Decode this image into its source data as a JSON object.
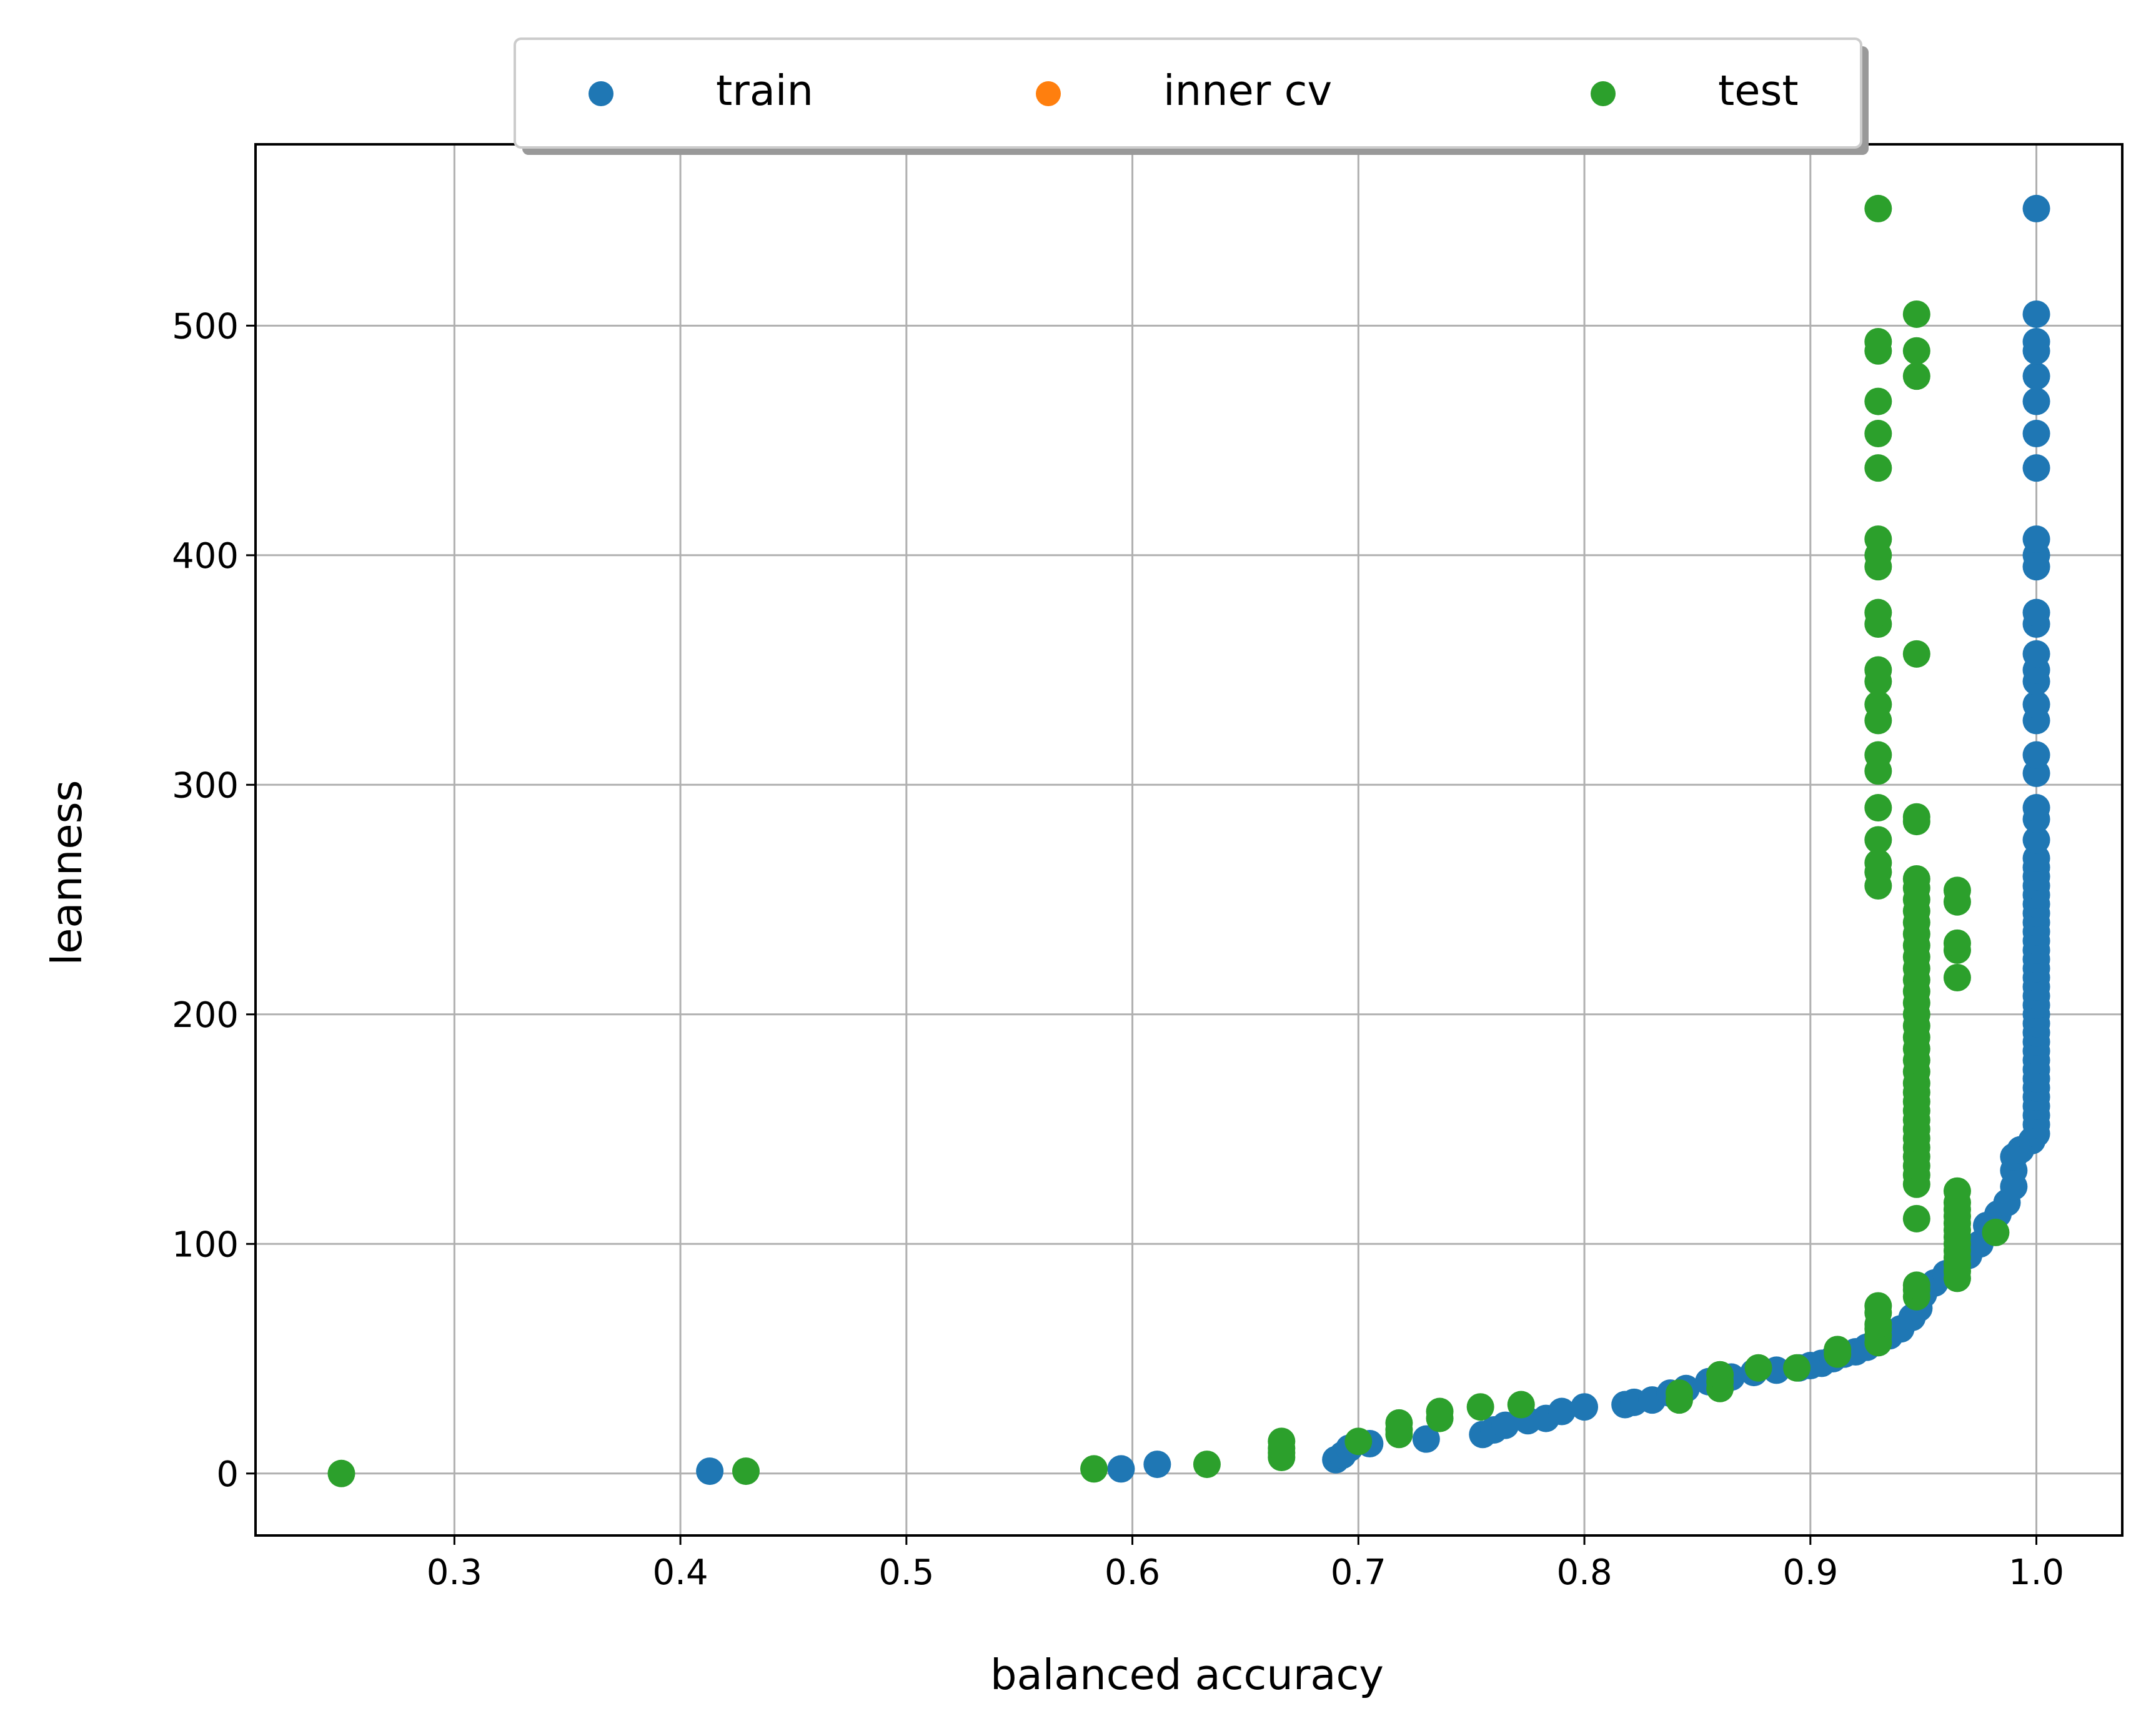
{
  "chart_data": {
    "type": "scatter",
    "xlabel": "balanced accuracy",
    "ylabel": "leanness",
    "xlim": [
      0.212,
      1.038
    ],
    "ylim": [
      -27,
      579
    ],
    "xticks": [
      0.3,
      0.4,
      0.5,
      0.6,
      0.7,
      0.8,
      0.9,
      1.0
    ],
    "xtick_labels": [
      "0.3",
      "0.4",
      "0.5",
      "0.6",
      "0.7",
      "0.8",
      "0.9",
      "1.0"
    ],
    "yticks": [
      0,
      100,
      200,
      300,
      400,
      500
    ],
    "ytick_labels": [
      "0",
      "100",
      "200",
      "300",
      "400",
      "500"
    ],
    "grid": true,
    "legend_position": "top-center",
    "series": [
      {
        "name": "train",
        "color": "#1f77b4",
        "points": [
          [
            0.413,
            1
          ],
          [
            0.595,
            2
          ],
          [
            0.611,
            4
          ],
          [
            0.69,
            6
          ],
          [
            0.693,
            8
          ],
          [
            0.696,
            11
          ],
          [
            0.705,
            13
          ],
          [
            0.73,
            15
          ],
          [
            0.755,
            17
          ],
          [
            0.76,
            19
          ],
          [
            0.765,
            21
          ],
          [
            0.775,
            23
          ],
          [
            0.783,
            24
          ],
          [
            0.79,
            27
          ],
          [
            0.8,
            29
          ],
          [
            0.818,
            30
          ],
          [
            0.822,
            31
          ],
          [
            0.83,
            32
          ],
          [
            0.838,
            35
          ],
          [
            0.845,
            37
          ],
          [
            0.855,
            40
          ],
          [
            0.865,
            42
          ],
          [
            0.875,
            44
          ],
          [
            0.885,
            45
          ],
          [
            0.895,
            46
          ],
          [
            0.9,
            47
          ],
          [
            0.905,
            48
          ],
          [
            0.91,
            50
          ],
          [
            0.915,
            52
          ],
          [
            0.92,
            53
          ],
          [
            0.925,
            55
          ],
          [
            0.93,
            57
          ],
          [
            0.935,
            60
          ],
          [
            0.94,
            63
          ],
          [
            0.945,
            68
          ],
          [
            0.948,
            72
          ],
          [
            0.95,
            78
          ],
          [
            0.955,
            83
          ],
          [
            0.96,
            87
          ],
          [
            0.965,
            90
          ],
          [
            0.97,
            95
          ],
          [
            0.975,
            100
          ],
          [
            0.978,
            108
          ],
          [
            0.983,
            113
          ],
          [
            0.987,
            118
          ],
          [
            0.99,
            125
          ],
          [
            0.99,
            132
          ],
          [
            0.99,
            138
          ],
          [
            0.993,
            141
          ],
          [
            0.998,
            145
          ],
          [
            1.0,
            148
          ],
          [
            1.0,
            152
          ],
          [
            1.0,
            156
          ],
          [
            1.0,
            160
          ],
          [
            1.0,
            164
          ],
          [
            1.0,
            168
          ],
          [
            1.0,
            172
          ],
          [
            1.0,
            176
          ],
          [
            1.0,
            180
          ],
          [
            1.0,
            184
          ],
          [
            1.0,
            188
          ],
          [
            1.0,
            192
          ],
          [
            1.0,
            196
          ],
          [
            1.0,
            200
          ],
          [
            1.0,
            204
          ],
          [
            1.0,
            208
          ],
          [
            1.0,
            212
          ],
          [
            1.0,
            216
          ],
          [
            1.0,
            220
          ],
          [
            1.0,
            224
          ],
          [
            1.0,
            228
          ],
          [
            1.0,
            232
          ],
          [
            1.0,
            236
          ],
          [
            1.0,
            240
          ],
          [
            1.0,
            244
          ],
          [
            1.0,
            248
          ],
          [
            1.0,
            252
          ],
          [
            1.0,
            256
          ],
          [
            1.0,
            260
          ],
          [
            1.0,
            264
          ],
          [
            1.0,
            268
          ],
          [
            1.0,
            276
          ],
          [
            1.0,
            285
          ],
          [
            1.0,
            290
          ],
          [
            1.0,
            305
          ],
          [
            1.0,
            313
          ],
          [
            1.0,
            328
          ],
          [
            1.0,
            335
          ],
          [
            1.0,
            345
          ],
          [
            1.0,
            350
          ],
          [
            1.0,
            357
          ],
          [
            1.0,
            370
          ],
          [
            1.0,
            375
          ],
          [
            1.0,
            395
          ],
          [
            1.0,
            400
          ],
          [
            1.0,
            407
          ],
          [
            1.0,
            438
          ],
          [
            1.0,
            453
          ],
          [
            1.0,
            467
          ],
          [
            1.0,
            478
          ],
          [
            1.0,
            489
          ],
          [
            1.0,
            493
          ],
          [
            1.0,
            505
          ],
          [
            1.0,
            551
          ]
        ]
      },
      {
        "name": "inner cv",
        "color": "#ff7f0e",
        "points": []
      },
      {
        "name": "test",
        "color": "#2ca02c",
        "points": [
          [
            0.25,
            0
          ],
          [
            0.429,
            1
          ],
          [
            0.583,
            2
          ],
          [
            0.633,
            4
          ],
          [
            0.666,
            7
          ],
          [
            0.666,
            9
          ],
          [
            0.666,
            11
          ],
          [
            0.666,
            14
          ],
          [
            0.7,
            14
          ],
          [
            0.718,
            17
          ],
          [
            0.718,
            19
          ],
          [
            0.718,
            22
          ],
          [
            0.736,
            24
          ],
          [
            0.736,
            27
          ],
          [
            0.754,
            29
          ],
          [
            0.772,
            30
          ],
          [
            0.842,
            32
          ],
          [
            0.842,
            35
          ],
          [
            0.86,
            37
          ],
          [
            0.86,
            40
          ],
          [
            0.86,
            43
          ],
          [
            0.877,
            46
          ],
          [
            0.894,
            46
          ],
          [
            0.912,
            52
          ],
          [
            0.912,
            54
          ],
          [
            0.93,
            57
          ],
          [
            0.93,
            60
          ],
          [
            0.93,
            63
          ],
          [
            0.93,
            65
          ],
          [
            0.93,
            70
          ],
          [
            0.93,
            73
          ],
          [
            0.947,
            77
          ],
          [
            0.947,
            80
          ],
          [
            0.947,
            82
          ],
          [
            0.965,
            85
          ],
          [
            0.965,
            88
          ],
          [
            0.965,
            91
          ],
          [
            0.965,
            94
          ],
          [
            0.965,
            97
          ],
          [
            0.965,
            100
          ],
          [
            0.965,
            103
          ],
          [
            0.965,
            106
          ],
          [
            0.982,
            105
          ],
          [
            0.965,
            109
          ],
          [
            0.965,
            112
          ],
          [
            0.965,
            115
          ],
          [
            0.965,
            118
          ],
          [
            0.965,
            123
          ],
          [
            0.947,
            111
          ],
          [
            0.947,
            126
          ],
          [
            0.947,
            130
          ],
          [
            0.947,
            134
          ],
          [
            0.947,
            138
          ],
          [
            0.947,
            142
          ],
          [
            0.947,
            146
          ],
          [
            0.947,
            150
          ],
          [
            0.947,
            154
          ],
          [
            0.947,
            158
          ],
          [
            0.947,
            162
          ],
          [
            0.947,
            166
          ],
          [
            0.947,
            170
          ],
          [
            0.947,
            175
          ],
          [
            0.947,
            180
          ],
          [
            0.947,
            185
          ],
          [
            0.947,
            190
          ],
          [
            0.947,
            195
          ],
          [
            0.947,
            200
          ],
          [
            0.947,
            205
          ],
          [
            0.947,
            210
          ],
          [
            0.947,
            215
          ],
          [
            0.947,
            220
          ],
          [
            0.947,
            225
          ],
          [
            0.947,
            230
          ],
          [
            0.947,
            235
          ],
          [
            0.947,
            240
          ],
          [
            0.947,
            245
          ],
          [
            0.947,
            250
          ],
          [
            0.947,
            255
          ],
          [
            0.947,
            259
          ],
          [
            0.965,
            216
          ],
          [
            0.965,
            228
          ],
          [
            0.965,
            231
          ],
          [
            0.965,
            249
          ],
          [
            0.965,
            254
          ],
          [
            0.947,
            284
          ],
          [
            0.947,
            286
          ],
          [
            0.947,
            357
          ],
          [
            0.947,
            478
          ],
          [
            0.947,
            489
          ],
          [
            0.947,
            505
          ],
          [
            0.93,
            256
          ],
          [
            0.93,
            262
          ],
          [
            0.93,
            266
          ],
          [
            0.93,
            276
          ],
          [
            0.93,
            290
          ],
          [
            0.93,
            306
          ],
          [
            0.93,
            313
          ],
          [
            0.93,
            328
          ],
          [
            0.93,
            335
          ],
          [
            0.93,
            345
          ],
          [
            0.93,
            350
          ],
          [
            0.93,
            370
          ],
          [
            0.93,
            375
          ],
          [
            0.93,
            395
          ],
          [
            0.93,
            400
          ],
          [
            0.93,
            407
          ],
          [
            0.93,
            438
          ],
          [
            0.93,
            453
          ],
          [
            0.93,
            467
          ],
          [
            0.93,
            489
          ],
          [
            0.93,
            493
          ],
          [
            0.93,
            551
          ]
        ]
      }
    ]
  }
}
